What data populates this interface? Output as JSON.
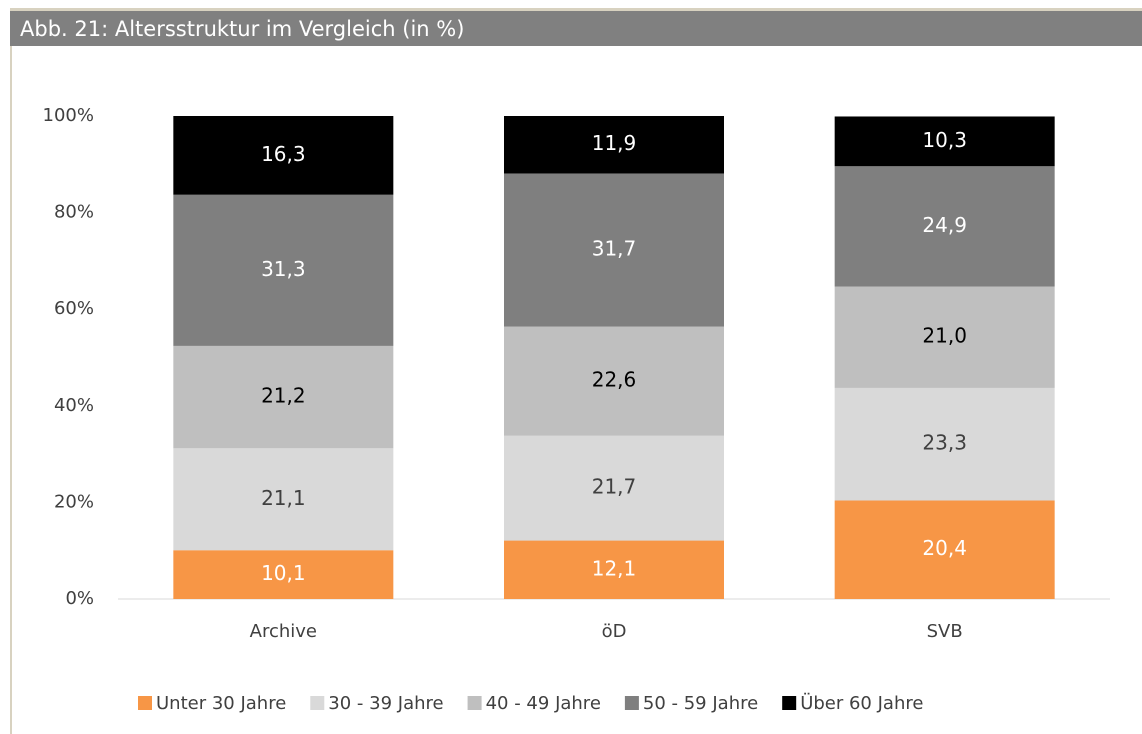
{
  "chart_data": {
    "type": "stacked_bar",
    "title": "Abb. 21: Altersstruktur im Vergleich (in %)",
    "categories": [
      "Archive",
      "öD",
      "SVB"
    ],
    "series": [
      {
        "name": "Unter 30 Jahre",
        "color": "#f79646",
        "label_color": "#ffffff",
        "values": [
          10.1,
          12.1,
          20.4
        ],
        "value_labels": [
          "10,1",
          "12,1",
          "20,4"
        ]
      },
      {
        "name": "30 - 39 Jahre",
        "color": "#d9d9d9",
        "label_color": "#404040",
        "values": [
          21.1,
          21.7,
          23.3
        ],
        "value_labels": [
          "21,1",
          "21,7",
          "23,3"
        ]
      },
      {
        "name": "40 - 49 Jahre",
        "color": "#bfbfbf",
        "label_color": "#000000",
        "values": [
          21.2,
          22.6,
          21.0
        ],
        "value_labels": [
          "21,2",
          "22,6",
          "21,0"
        ]
      },
      {
        "name": "50 - 59 Jahre",
        "color": "#7f7f7f",
        "label_color": "#ffffff",
        "values": [
          31.3,
          31.7,
          24.9
        ],
        "value_labels": [
          "31,3",
          "31,7",
          "24,9"
        ]
      },
      {
        "name": "Über 60 Jahre",
        "color": "#000000",
        "label_color": "#ffffff",
        "values": [
          16.3,
          11.9,
          10.3
        ],
        "value_labels": [
          "16,3",
          "11,9",
          "10,3"
        ]
      }
    ],
    "ylim": [
      0,
      100
    ],
    "yticks": [
      {
        "value": 0,
        "label": "0%"
      },
      {
        "value": 20,
        "label": "20%"
      },
      {
        "value": 40,
        "label": "40%"
      },
      {
        "value": 60,
        "label": "60%"
      },
      {
        "value": 80,
        "label": "80%"
      },
      {
        "value": 100,
        "label": "100%"
      }
    ],
    "legend": "bottom"
  }
}
